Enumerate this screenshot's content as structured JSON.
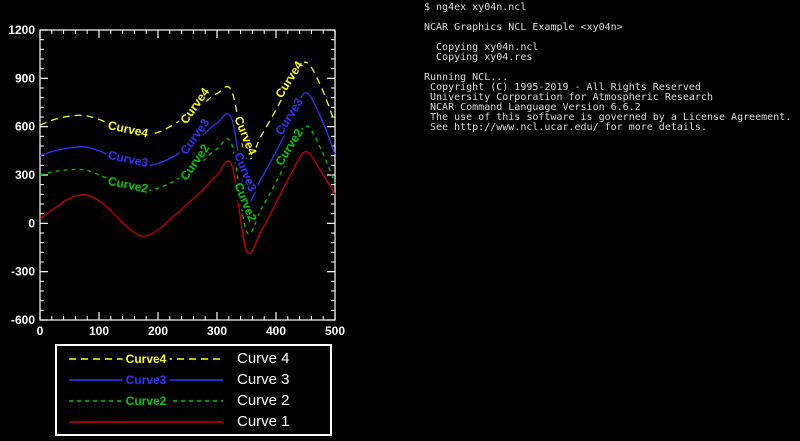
{
  "terminal": {
    "lines": [
      "$ ng4ex xy04n.ncl",
      "",
      "NCAR Graphics NCL Example <xy04n>",
      "",
      "  Copying xy04n.ncl",
      "  Copying xy04.res",
      "",
      "Running NCL...",
      " Copyright (C) 1995-2019 - All Rights Reserved",
      " University Corporation for Atmospheric Research",
      " NCAR Command Language Version 6.6.2",
      " The use of this software is governed by a License Agreement.",
      " See http://www.ncl.ucar.edu/ for more details."
    ]
  },
  "chart_data": {
    "type": "line",
    "title": "",
    "xlabel": "",
    "ylabel": "",
    "xlim": [
      0,
      500
    ],
    "ylim": [
      -600,
      1200
    ],
    "xticks": [
      0,
      100,
      200,
      300,
      400,
      500
    ],
    "yticks": [
      -600,
      -300,
      0,
      300,
      600,
      900,
      1200
    ],
    "grid": false,
    "background": "#000000",
    "axis_color": "#ffffff",
    "x": [
      0,
      25,
      50,
      75,
      100,
      125,
      150,
      175,
      200,
      225,
      250,
      275,
      300,
      325,
      350,
      375,
      400,
      425,
      450,
      475,
      500
    ],
    "series": [
      {
        "name": "Curve4",
        "color": "#ffff00",
        "dash": "7 5",
        "values": [
          610,
          645,
          665,
          670,
          645,
          605,
          565,
          548,
          565,
          610,
          670,
          740,
          805,
          820,
          400,
          545,
          705,
          875,
          1000,
          860,
          620
        ]
      },
      {
        "name": "Curve3",
        "color": "#3333ff",
        "dash": "",
        "values": [
          420,
          450,
          468,
          475,
          450,
          408,
          372,
          356,
          372,
          412,
          472,
          545,
          622,
          648,
          150,
          280,
          445,
          625,
          810,
          665,
          430
        ]
      },
      {
        "name": "Curve2",
        "color": "#00cc00",
        "dash": "4 4",
        "values": [
          300,
          322,
          333,
          332,
          302,
          258,
          218,
          202,
          218,
          258,
          315,
          385,
          462,
          490,
          -50,
          90,
          255,
          435,
          605,
          470,
          250
        ]
      },
      {
        "name": "Curve1",
        "color": "#cc0000",
        "dash": "",
        "values": [
          30,
          95,
          155,
          178,
          140,
          60,
          -30,
          -80,
          -40,
          40,
          120,
          205,
          300,
          360,
          -170,
          -45,
          125,
          305,
          445,
          330,
          180
        ]
      }
    ],
    "line_labels": [
      {
        "series": "Curve4",
        "text": "Curve4",
        "x": 148,
        "y": 560,
        "rot": 12
      },
      {
        "series": "Curve4",
        "text": "Curve4",
        "x": 268,
        "y": 715,
        "rot": -55
      },
      {
        "series": "Curve4",
        "text": "Curve4",
        "x": 342,
        "y": 535,
        "rot": 68
      },
      {
        "series": "Curve4",
        "text": "Curve4",
        "x": 428,
        "y": 880,
        "rot": -58
      },
      {
        "series": "Curve3",
        "text": "Curve3",
        "x": 148,
        "y": 375,
        "rot": 12
      },
      {
        "series": "Curve3",
        "text": "Curve3",
        "x": 268,
        "y": 525,
        "rot": -55
      },
      {
        "series": "Curve3",
        "text": "Curve3",
        "x": 342,
        "y": 310,
        "rot": 68
      },
      {
        "series": "Curve3",
        "text": "Curve3",
        "x": 428,
        "y": 650,
        "rot": -58
      },
      {
        "series": "Curve2",
        "text": "Curve2",
        "x": 148,
        "y": 215,
        "rot": 12
      },
      {
        "series": "Curve2",
        "text": "Curve2",
        "x": 268,
        "y": 365,
        "rot": -55
      },
      {
        "series": "Curve2",
        "text": "Curve2",
        "x": 342,
        "y": 123,
        "rot": 68
      },
      {
        "series": "Curve2",
        "text": "Curve2",
        "x": 428,
        "y": 460,
        "rot": -58
      }
    ],
    "legend": {
      "position": "below",
      "rows": [
        {
          "inline": "Curve4",
          "label": "Curve 4"
        },
        {
          "inline": "Curve3",
          "label": "Curve 3"
        },
        {
          "inline": "Curve2",
          "label": "Curve 2"
        },
        {
          "inline": "",
          "label": "Curve 1"
        }
      ]
    }
  }
}
